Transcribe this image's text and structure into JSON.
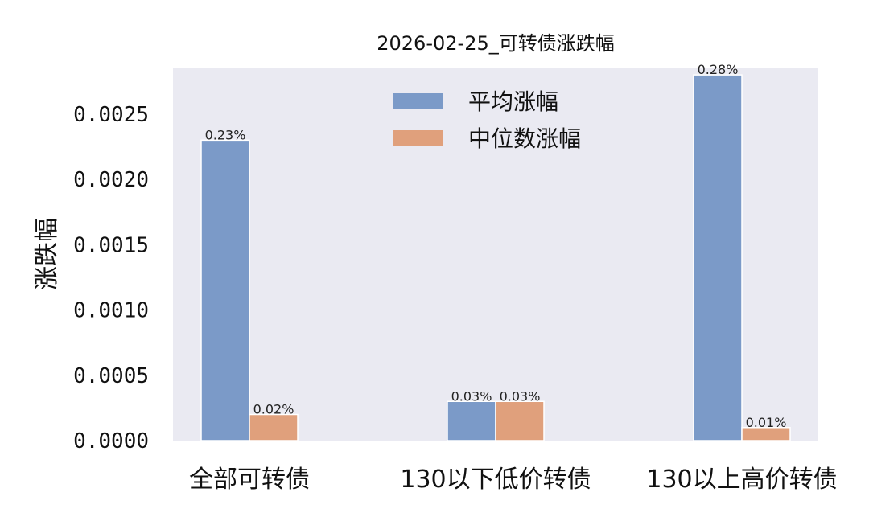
{
  "chart_data": {
    "type": "bar",
    "title": "2026-02-25_可转债涨跌幅",
    "ylabel": "涨跌幅",
    "xlabel": "",
    "categories": [
      "全部可转债",
      "130以下低价转债",
      "130以上高价转债"
    ],
    "series": [
      {
        "name": "平均涨幅",
        "values": [
          0.0023,
          0.0003,
          0.0028
        ],
        "labels": [
          "0.23%",
          "0.03%",
          "0.28%"
        ],
        "color": "#7b9ac8"
      },
      {
        "name": "中位数涨幅",
        "values": [
          0.0002,
          0.0003,
          0.0001
        ],
        "labels": [
          "0.02%",
          "0.03%",
          "0.01%"
        ],
        "color": "#e0a07c"
      }
    ],
    "yticks": [
      "0.0000",
      "0.0005",
      "0.0010",
      "0.0015",
      "0.0020",
      "0.0025"
    ],
    "ylim": [
      0,
      0.00285
    ],
    "grid": false,
    "legend": "top-center",
    "plot_background": "#eaeaf2"
  }
}
